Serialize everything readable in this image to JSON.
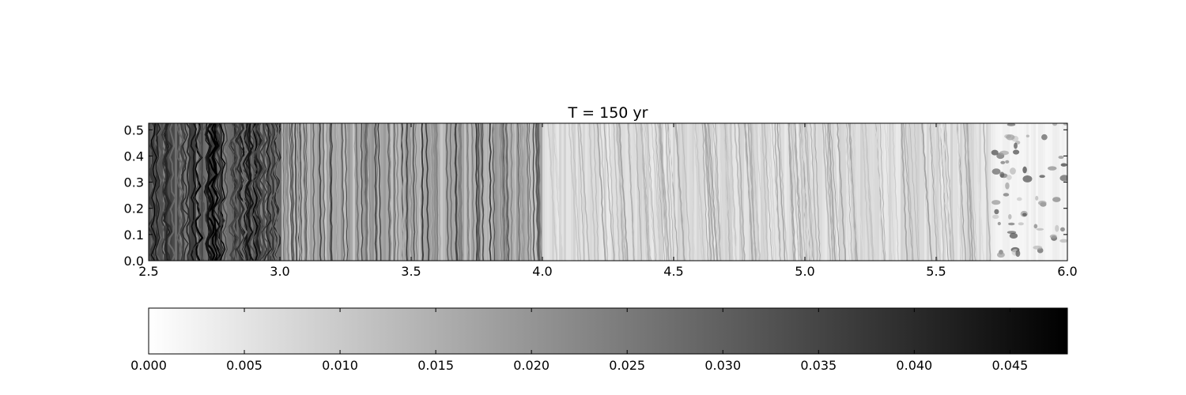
{
  "chart_data": [
    {
      "type": "heatmap",
      "title": "T = 150 yr",
      "xlabel": "",
      "ylabel": "",
      "xlim": [
        2.5,
        6.0
      ],
      "ylim": [
        0.0,
        0.525
      ],
      "x_ticks": [
        "2.5",
        "3.0",
        "3.5",
        "4.0",
        "4.5",
        "5.0",
        "5.5",
        "6.0"
      ],
      "y_ticks": [
        "0.0",
        "0.1",
        "0.2",
        "0.3",
        "0.4",
        "0.5"
      ],
      "colormap": "gray_r",
      "grid": false,
      "description_of_field": [
        {
          "x_range": [
            2.5,
            3.0
          ],
          "intensity": "high, dense dark vertical filaments with wavy structure"
        },
        {
          "x_range": [
            3.0,
            4.0
          ],
          "intensity": "moderate, many thin dark vertical streaks"
        },
        {
          "x_range": [
            4.0,
            5.7
          ],
          "intensity": "low, faint tilted grey streaks"
        },
        {
          "x_range": [
            5.7,
            6.0
          ],
          "intensity": "low background with scattered dark clumps"
        }
      ]
    },
    {
      "type": "colorbar",
      "orientation": "horizontal",
      "range": [
        0.0,
        0.048
      ],
      "ticks": [
        "0.000",
        "0.005",
        "0.010",
        "0.015",
        "0.020",
        "0.025",
        "0.030",
        "0.035",
        "0.040",
        "0.045"
      ],
      "colors": {
        "low": "#ffffff",
        "high": "#000000"
      }
    }
  ]
}
